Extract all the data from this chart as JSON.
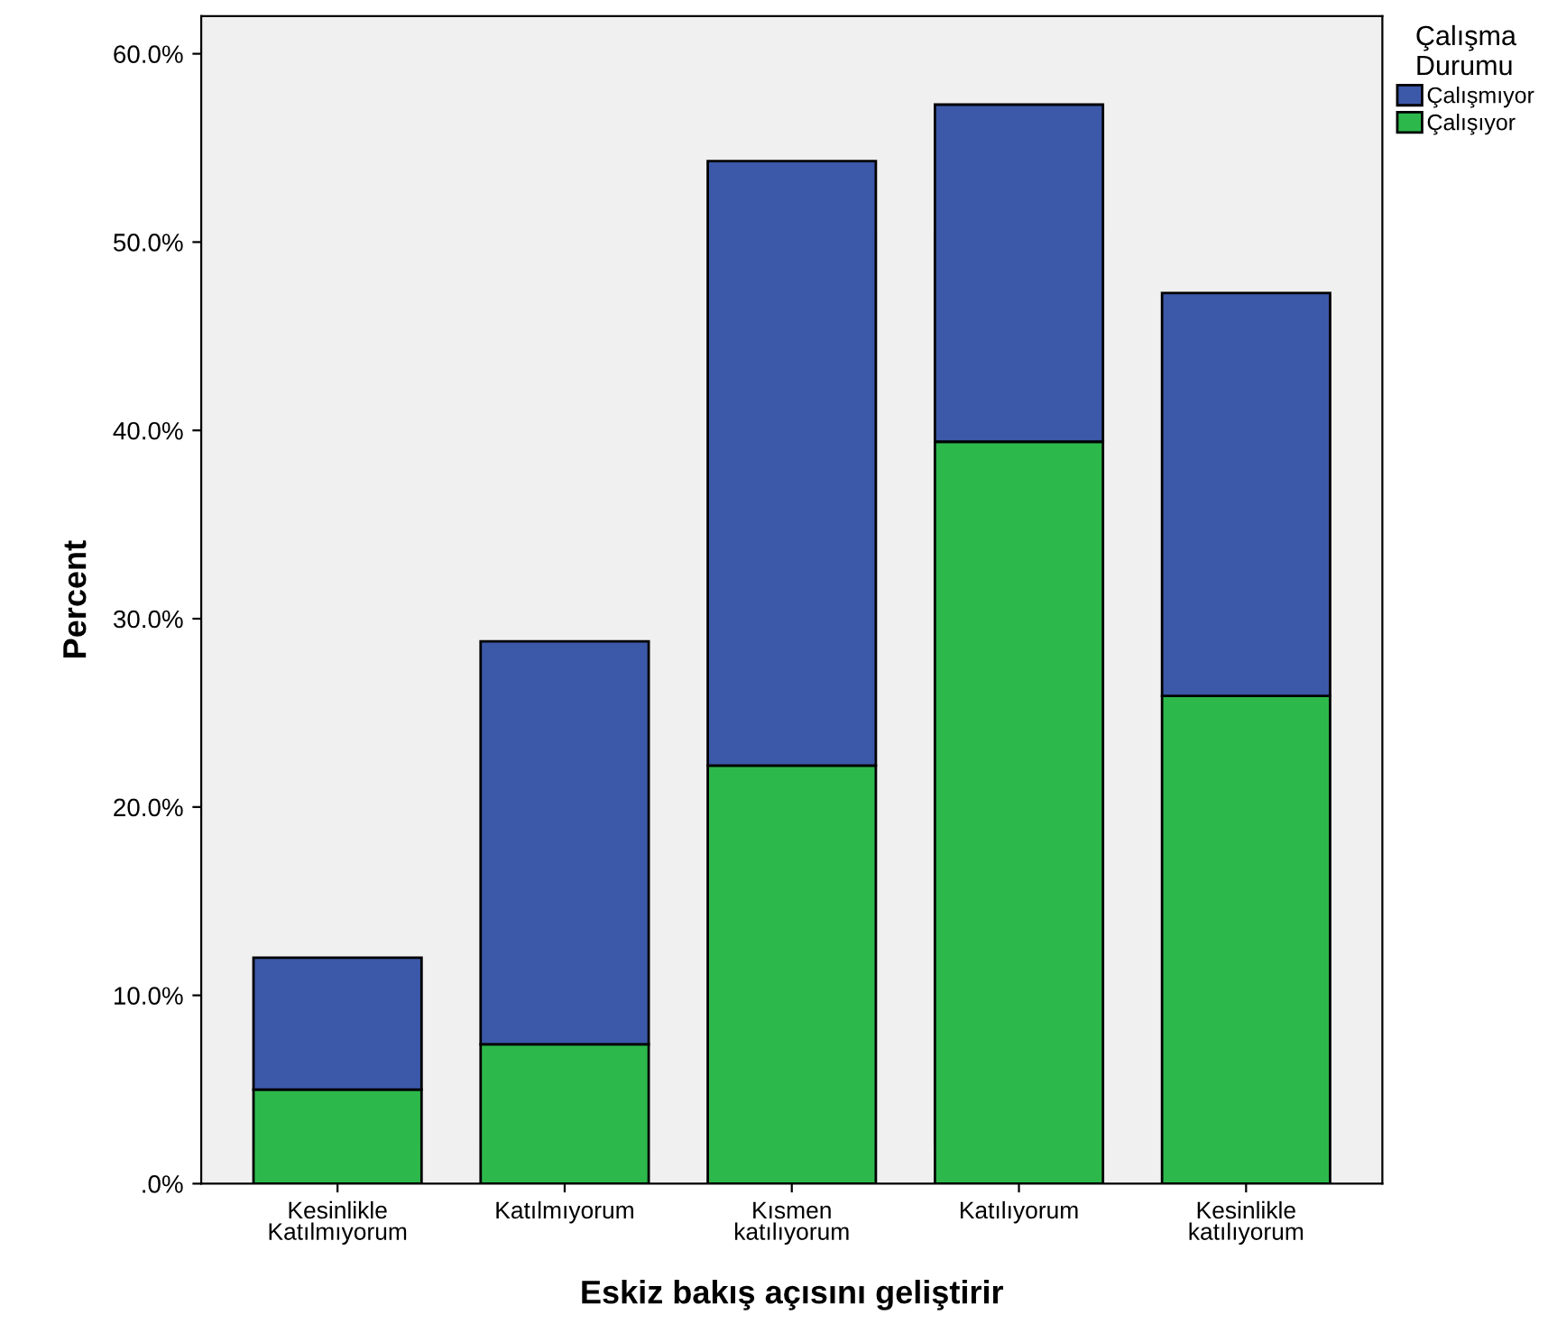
{
  "chart_data": {
    "type": "bar",
    "stacked": true,
    "xlabel": "Eskiz bakış açısını geliştirir",
    "ylabel": "Percent",
    "legend_title": "Çalışma\nDurumu",
    "legend": "right",
    "categories": [
      "Kesinlikle\nKatılmıyorum",
      "Katılmıyorum",
      "Kısmen\nkatılıyorum",
      "Katılıyorum",
      "Kesinlikle\nkatılıyorum"
    ],
    "series": [
      {
        "name": "Çalışıyor",
        "color": "#2db84c",
        "values": [
          5.0,
          7.4,
          22.2,
          39.4,
          25.9
        ]
      },
      {
        "name": "Çalışmıyor",
        "color": "#3c58a8",
        "values": [
          7.0,
          21.4,
          32.1,
          17.9,
          21.4
        ]
      }
    ],
    "ylim": [
      0,
      62
    ],
    "yticks": [
      {
        "value": 0,
        "label": ".0%"
      },
      {
        "value": 10,
        "label": "10.0%"
      },
      {
        "value": 20,
        "label": "20.0%"
      },
      {
        "value": 30,
        "label": "30.0%"
      },
      {
        "value": 40,
        "label": "40.0%"
      },
      {
        "value": 50,
        "label": "50.0%"
      },
      {
        "value": 60,
        "label": "60.0%"
      }
    ],
    "grid": false
  }
}
